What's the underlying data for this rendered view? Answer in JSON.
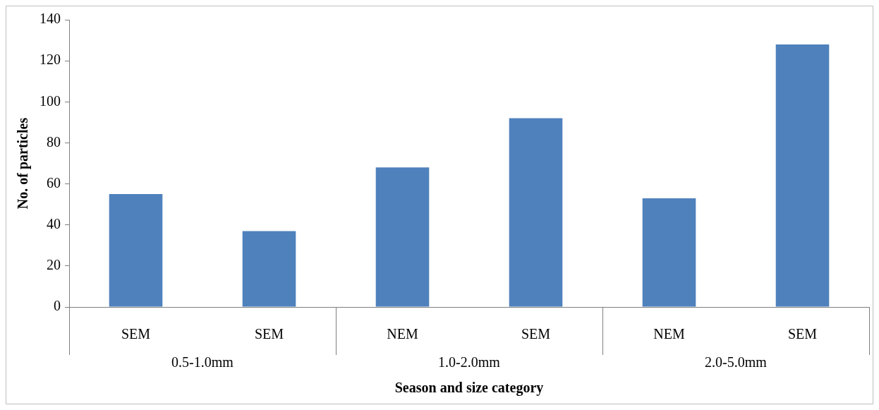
{
  "chart_data": {
    "type": "bar",
    "xlabel": "Season and size category",
    "ylabel": "No. of particles",
    "categories": [
      "SEM",
      "SEM",
      "NEM",
      "SEM",
      "NEM",
      "SEM"
    ],
    "values": [
      55,
      37,
      68,
      92,
      53,
      128
    ],
    "color": "#4f81bd",
    "ylim": [
      0,
      140
    ],
    "yticks": [
      0,
      20,
      40,
      60,
      80,
      100,
      120,
      140
    ],
    "grid": false,
    "annotations": [
      "0.5-1.0mm",
      "1.0-2.0mm",
      "2.0-5.0mm"
    ]
  }
}
